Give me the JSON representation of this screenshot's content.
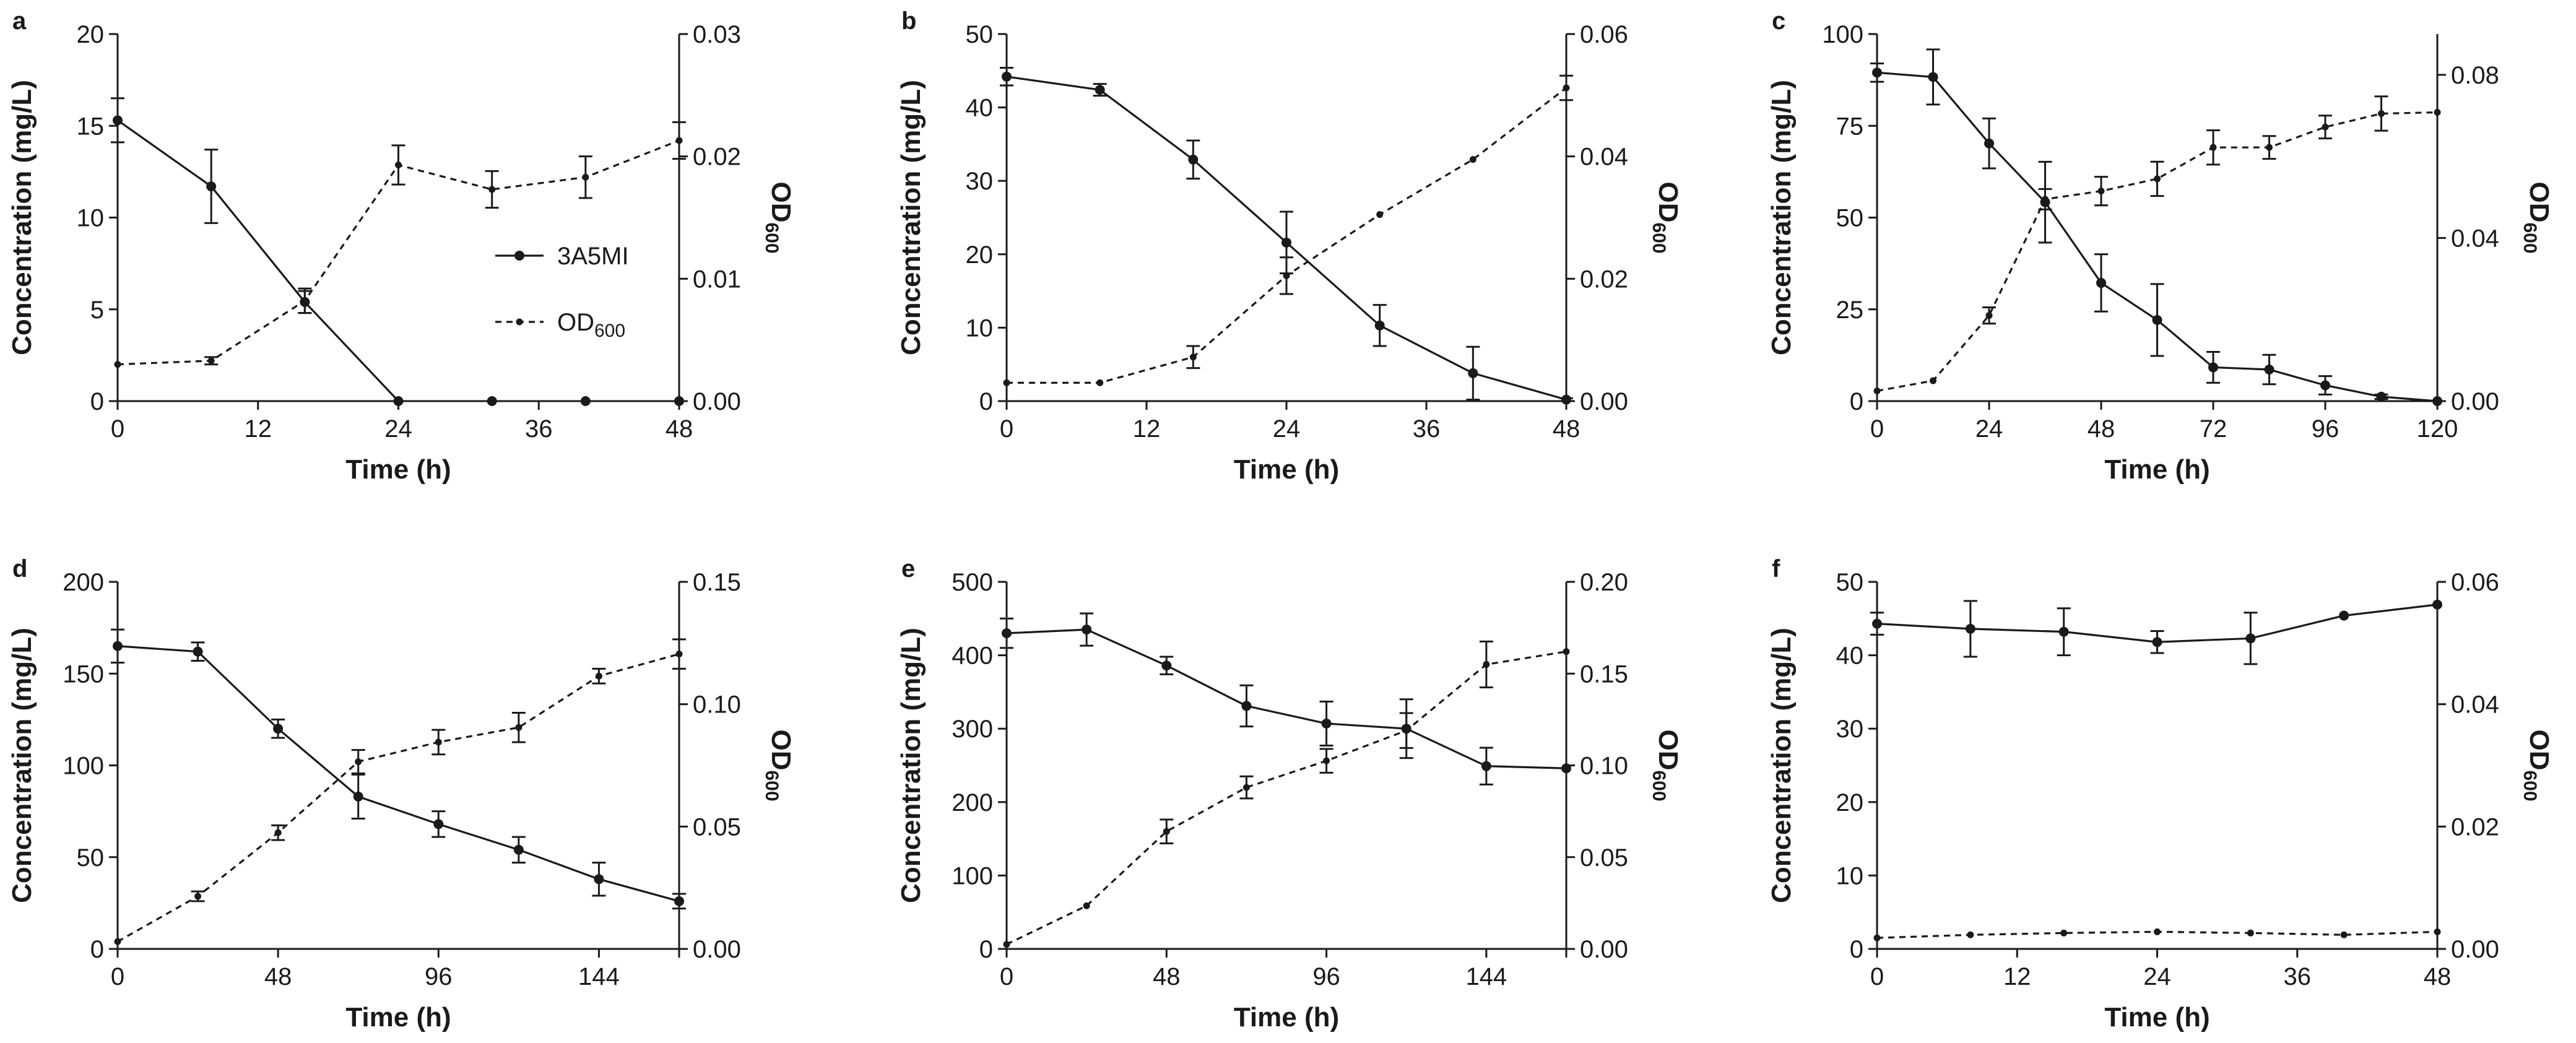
{
  "figure": {
    "legend": {
      "entries": [
        {
          "label": "3A5MI",
          "series": "3A5MI",
          "style": "solid"
        },
        {
          "label_main": "OD",
          "label_sub": "600",
          "series": "OD600",
          "style": "dashed"
        }
      ]
    }
  },
  "chart_data": [
    {
      "panel": "a",
      "type": "line",
      "xlabel": "Time (h)",
      "ylabel": "Concentration (mg/L)",
      "y2label_main": "OD",
      "y2label_sub": "600",
      "xlim": [
        0,
        48
      ],
      "ylim": [
        0,
        20
      ],
      "y2lim": [
        0,
        0.03
      ],
      "xticks": [
        0,
        12,
        24,
        36,
        48
      ],
      "yticks": [
        0,
        5,
        10,
        15,
        20
      ],
      "y2ticks": [
        "0.00",
        "0.01",
        "0.02",
        "0.03"
      ],
      "series": [
        {
          "name": "3A5MI",
          "axis": "left",
          "style": "solid",
          "x": [
            0,
            8,
            16,
            24,
            32,
            40,
            48
          ],
          "y": [
            15.3,
            11.7,
            5.4,
            0,
            0,
            0,
            0
          ],
          "err": [
            1.2,
            2.0,
            0.6,
            0,
            0,
            0,
            0
          ],
          "line_until": 24
        },
        {
          "name": "OD600",
          "axis": "right",
          "style": "dashed",
          "x": [
            0,
            8,
            16,
            24,
            32,
            40,
            48
          ],
          "y": [
            0.003,
            0.0033,
            0.0082,
            0.0193,
            0.0173,
            0.0183,
            0.0213
          ],
          "err": [
            0,
            0.0003,
            0.001,
            0.0016,
            0.0015,
            0.0017,
            0.0015
          ]
        }
      ]
    },
    {
      "panel": "b",
      "type": "line",
      "xlabel": "Time (h)",
      "ylabel": "Concentration (mg/L)",
      "y2label_main": "OD",
      "y2label_sub": "600",
      "xlim": [
        0,
        48
      ],
      "ylim": [
        0,
        50
      ],
      "y2lim": [
        0,
        0.06
      ],
      "xticks": [
        0,
        12,
        24,
        36,
        48
      ],
      "yticks": [
        0,
        10,
        20,
        30,
        40,
        50
      ],
      "y2ticks": [
        "0.00",
        "0.02",
        "0.04",
        "0.06"
      ],
      "series": [
        {
          "name": "3A5MI",
          "axis": "left",
          "style": "solid",
          "x": [
            0,
            8,
            16,
            24,
            32,
            40,
            48
          ],
          "y": [
            44.2,
            42.4,
            32.9,
            21.6,
            10.3,
            3.8,
            0.2
          ],
          "err": [
            1.2,
            0.8,
            2.6,
            4.2,
            2.8,
            3.6,
            0.2
          ]
        },
        {
          "name": "OD600",
          "axis": "right",
          "style": "dashed",
          "x": [
            0,
            8,
            16,
            24,
            32,
            40,
            48
          ],
          "y": [
            0.003,
            0.003,
            0.0072,
            0.0205,
            0.0305,
            0.0395,
            0.0512
          ],
          "err": [
            0,
            0,
            0.0018,
            0.003,
            0,
            0,
            0.002
          ]
        }
      ]
    },
    {
      "panel": "c",
      "type": "line",
      "xlabel": "Time (h)",
      "ylabel": "Concentration (mg/L)",
      "y2label_main": "OD",
      "y2label_sub": "600",
      "xlim": [
        0,
        120
      ],
      "ylim": [
        0,
        100
      ],
      "y2lim": [
        0,
        0.09
      ],
      "xticks": [
        0,
        24,
        48,
        72,
        96,
        120
      ],
      "yticks": [
        0,
        25,
        50,
        75,
        100
      ],
      "y2ticks": [
        "0.00",
        "0.04",
        "0.08"
      ],
      "y2tick_values": [
        0,
        0.04,
        0.08
      ],
      "series": [
        {
          "name": "3A5MI",
          "axis": "left",
          "style": "solid",
          "x": [
            0,
            12,
            24,
            36,
            48,
            60,
            72,
            84,
            96,
            108,
            120
          ],
          "y": [
            89.5,
            88.3,
            70.2,
            54.2,
            32.2,
            22.1,
            9.2,
            8.6,
            4.3,
            1.2,
            0
          ],
          "err": [
            2.5,
            7.5,
            6.8,
            11.0,
            7.8,
            9.8,
            4.2,
            4.0,
            2.5,
            0.6,
            0
          ]
        },
        {
          "name": "OD600",
          "axis": "right",
          "style": "dashed",
          "x": [
            0,
            12,
            24,
            36,
            48,
            60,
            72,
            84,
            96,
            108,
            120
          ],
          "y": [
            0.0025,
            0.005,
            0.021,
            0.0495,
            0.0515,
            0.0545,
            0.0622,
            0.0622,
            0.0672,
            0.0705,
            0.0708
          ],
          "err": [
            0,
            0,
            0.002,
            0.0025,
            0.0035,
            0.0042,
            0.0042,
            0.0028,
            0.0028,
            0.0042,
            0
          ]
        }
      ]
    },
    {
      "panel": "d",
      "type": "line",
      "xlabel": "Time (h)",
      "ylabel": "Concentration (mg/L)",
      "y2label_main": "OD",
      "y2label_sub": "600",
      "xlim": [
        0,
        168
      ],
      "ylim": [
        0,
        200
      ],
      "y2lim": [
        0,
        0.15
      ],
      "xticks": [
        0,
        48,
        96,
        144
      ],
      "yticks": [
        0,
        50,
        100,
        150,
        200
      ],
      "y2ticks": [
        "0.00",
        "0.05",
        "0.10",
        "0.15"
      ],
      "series": [
        {
          "name": "3A5MI",
          "axis": "left",
          "style": "solid",
          "x": [
            0,
            24,
            48,
            72,
            96,
            120,
            144,
            168
          ],
          "y": [
            165,
            162,
            120,
            83,
            68,
            54,
            38,
            26
          ],
          "err": [
            9,
            5,
            5,
            12,
            7,
            7,
            9,
            4
          ]
        },
        {
          "name": "OD600",
          "axis": "right",
          "style": "dashed",
          "x": [
            0,
            24,
            48,
            72,
            96,
            120,
            144,
            168
          ],
          "y": [
            0.003,
            0.0215,
            0.0475,
            0.0765,
            0.0845,
            0.0905,
            0.1115,
            0.1205
          ],
          "err": [
            0,
            0.002,
            0.003,
            0.0048,
            0.005,
            0.006,
            0.003,
            0.006
          ]
        }
      ]
    },
    {
      "panel": "e",
      "type": "line",
      "xlabel": "Time (h)",
      "ylabel": "Concentration (mg/L)",
      "y2label_main": "OD",
      "y2label_sub": "600",
      "xlim": [
        0,
        168
      ],
      "ylim": [
        0,
        500
      ],
      "y2lim": [
        0,
        0.2
      ],
      "xticks": [
        0,
        48,
        96,
        144
      ],
      "yticks": [
        0,
        100,
        200,
        300,
        400,
        500
      ],
      "y2ticks": [
        "0.00",
        "0.05",
        "0.10",
        "0.15",
        "0.20"
      ],
      "series": [
        {
          "name": "3A5MI",
          "axis": "left",
          "style": "solid",
          "x": [
            0,
            24,
            48,
            72,
            96,
            120,
            144,
            168
          ],
          "y": [
            430,
            435,
            386,
            331,
            307,
            300,
            249,
            246
          ],
          "err": [
            20,
            22,
            12,
            28,
            30,
            40,
            25,
            0
          ]
        },
        {
          "name": "OD600",
          "axis": "right",
          "style": "dashed",
          "x": [
            0,
            24,
            48,
            72,
            96,
            120,
            144,
            168
          ],
          "y": [
            0.0025,
            0.0235,
            0.064,
            0.088,
            0.1025,
            0.119,
            0.155,
            0.162
          ],
          "err": [
            0,
            0,
            0.0065,
            0.006,
            0.0065,
            0.0095,
            0.0125,
            0
          ]
        }
      ]
    },
    {
      "panel": "f",
      "type": "line",
      "xlabel": "Time (h)",
      "ylabel": "Concentration (mg/L)",
      "y2label_main": "OD",
      "y2label_sub": "600",
      "xlim": [
        0,
        48
      ],
      "ylim": [
        0,
        50
      ],
      "y2lim": [
        0,
        0.06
      ],
      "xticks": [
        0,
        12,
        24,
        36,
        48
      ],
      "yticks": [
        0,
        10,
        20,
        30,
        40,
        50
      ],
      "y2ticks": [
        "0.00",
        "0.02",
        "0.04",
        "0.06"
      ],
      "series": [
        {
          "name": "3A5MI",
          "axis": "left",
          "style": "solid",
          "x": [
            0,
            8,
            16,
            24,
            32,
            40,
            48
          ],
          "y": [
            44.3,
            43.6,
            43.2,
            41.8,
            42.3,
            45.4,
            46.9
          ],
          "err": [
            1.5,
            3.8,
            3.2,
            1.5,
            3.5,
            0,
            0
          ]
        },
        {
          "name": "OD600",
          "axis": "right",
          "style": "dashed",
          "x": [
            0,
            8,
            16,
            24,
            32,
            40,
            48
          ],
          "y": [
            0.0018,
            0.0023,
            0.0026,
            0.0028,
            0.0026,
            0.0023,
            0.0028
          ],
          "err": [
            0,
            0,
            0,
            0,
            0,
            0,
            0
          ]
        }
      ]
    }
  ]
}
